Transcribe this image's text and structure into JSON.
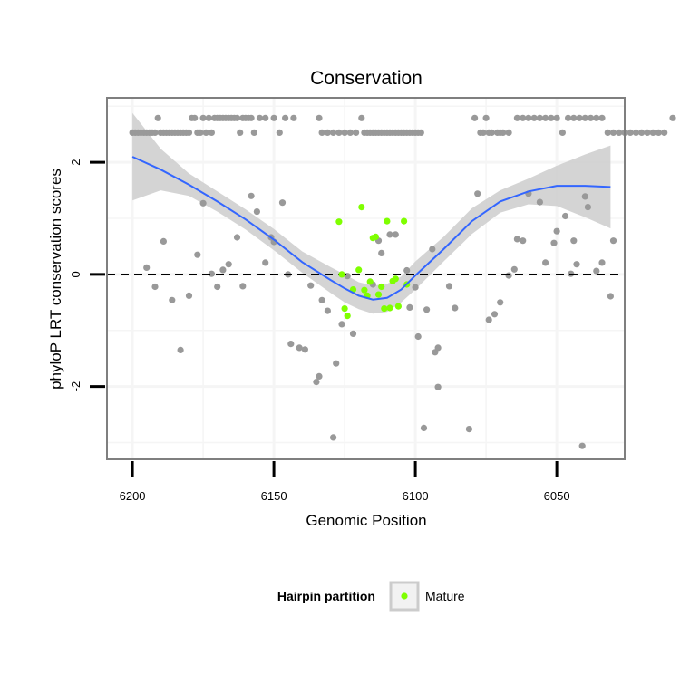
{
  "chart_data": {
    "type": "scatter",
    "title": "Conservation",
    "xlabel": "Genomic Position",
    "ylabel": "phyloP LRT conservation scores",
    "x_reversed": true,
    "xlim": [
      6209,
      6026
    ],
    "ylim": [
      -3.3,
      3.15
    ],
    "x_ticks": [
      6200,
      6150,
      6100,
      6050
    ],
    "y_ticks": [
      -2,
      0,
      2
    ],
    "y_tick_labels": [
      "-2",
      "0",
      "2"
    ],
    "hline": 0,
    "grid": true,
    "legend": {
      "title": "Hairpin partition",
      "entries": [
        {
          "label": "Mature",
          "color": "#7FFF00"
        }
      ],
      "placement": "bottom"
    },
    "colors": {
      "other": "#999999",
      "mature": "#7FFF00",
      "smooth": "#3366FF",
      "ribbon": "#CCCCCC",
      "panel_border": "#7F7F7F",
      "grid": "#F5F5F5"
    },
    "series": [
      {
        "name": "Other",
        "points": [
          [
            6200,
            2.53
          ],
          [
            6199,
            2.53
          ],
          [
            6198,
            2.53
          ],
          [
            6197,
            2.53
          ],
          [
            6196,
            2.53
          ],
          [
            6195,
            2.53
          ],
          [
            6194,
            2.53
          ],
          [
            6193,
            2.53
          ],
          [
            6192,
            2.53
          ],
          [
            6191,
            2.79
          ],
          [
            6190,
            2.53
          ],
          [
            6189,
            2.53
          ],
          [
            6188,
            2.53
          ],
          [
            6187,
            2.53
          ],
          [
            6186,
            2.53
          ],
          [
            6185,
            2.53
          ],
          [
            6184,
            2.53
          ],
          [
            6183,
            2.53
          ],
          [
            6182,
            2.53
          ],
          [
            6181,
            2.53
          ],
          [
            6180,
            2.53
          ],
          [
            6179,
            2.79
          ],
          [
            6178,
            2.79
          ],
          [
            6177,
            2.53
          ],
          [
            6176,
            2.53
          ],
          [
            6175,
            2.79
          ],
          [
            6174,
            2.53
          ],
          [
            6173,
            2.79
          ],
          [
            6172,
            2.53
          ],
          [
            6171,
            2.79
          ],
          [
            6170,
            2.79
          ],
          [
            6169,
            2.79
          ],
          [
            6168,
            2.79
          ],
          [
            6167,
            2.79
          ],
          [
            6166,
            2.79
          ],
          [
            6165,
            2.79
          ],
          [
            6164,
            2.79
          ],
          [
            6163,
            2.79
          ],
          [
            6162,
            2.53
          ],
          [
            6161,
            2.79
          ],
          [
            6160,
            2.79
          ],
          [
            6159,
            2.79
          ],
          [
            6158,
            2.79
          ],
          [
            6157,
            2.53
          ],
          [
            6155,
            2.79
          ],
          [
            6153,
            2.79
          ],
          [
            6150,
            2.79
          ],
          [
            6148,
            2.53
          ],
          [
            6146,
            2.79
          ],
          [
            6143,
            2.79
          ],
          [
            6134,
            2.79
          ],
          [
            6133,
            2.53
          ],
          [
            6131,
            2.53
          ],
          [
            6129,
            2.53
          ],
          [
            6127,
            2.53
          ],
          [
            6125,
            2.53
          ],
          [
            6123,
            2.53
          ],
          [
            6121,
            2.53
          ],
          [
            6119,
            2.79
          ],
          [
            6118,
            2.53
          ],
          [
            6117,
            2.53
          ],
          [
            6116,
            2.53
          ],
          [
            6115,
            2.53
          ],
          [
            6114,
            2.53
          ],
          [
            6113,
            2.53
          ],
          [
            6112,
            2.53
          ],
          [
            6111,
            2.53
          ],
          [
            6110,
            2.53
          ],
          [
            6109,
            2.53
          ],
          [
            6108,
            2.53
          ],
          [
            6107,
            2.53
          ],
          [
            6106,
            2.53
          ],
          [
            6105,
            2.53
          ],
          [
            6104,
            2.53
          ],
          [
            6103,
            2.53
          ],
          [
            6102,
            2.53
          ],
          [
            6101,
            2.53
          ],
          [
            6100,
            2.53
          ],
          [
            6099,
            2.53
          ],
          [
            6098,
            2.53
          ],
          [
            6079,
            2.79
          ],
          [
            6077,
            2.53
          ],
          [
            6076,
            2.53
          ],
          [
            6075,
            2.79
          ],
          [
            6074,
            2.53
          ],
          [
            6073,
            2.53
          ],
          [
            6071,
            2.53
          ],
          [
            6070,
            2.53
          ],
          [
            6069,
            2.53
          ],
          [
            6067,
            2.53
          ],
          [
            6064,
            2.79
          ],
          [
            6062,
            2.79
          ],
          [
            6060,
            2.79
          ],
          [
            6058,
            2.79
          ],
          [
            6056,
            2.79
          ],
          [
            6054,
            2.79
          ],
          [
            6052,
            2.79
          ],
          [
            6050,
            2.79
          ],
          [
            6048,
            2.53
          ],
          [
            6046,
            2.79
          ],
          [
            6044,
            2.79
          ],
          [
            6042,
            2.79
          ],
          [
            6040,
            2.79
          ],
          [
            6038,
            2.79
          ],
          [
            6036,
            2.79
          ],
          [
            6034,
            2.79
          ],
          [
            6032,
            2.53
          ],
          [
            6030,
            2.53
          ],
          [
            6028,
            2.53
          ],
          [
            6026,
            2.53
          ],
          [
            6024,
            2.53
          ],
          [
            6022,
            2.53
          ],
          [
            6020,
            2.53
          ],
          [
            6018,
            2.53
          ],
          [
            6016,
            2.53
          ],
          [
            6014,
            2.53
          ],
          [
            6012,
            2.53
          ],
          [
            6009,
            2.79
          ],
          [
            6195,
            0.12
          ],
          [
            6192,
            -0.22
          ],
          [
            6189,
            0.59
          ],
          [
            6186,
            -0.46
          ],
          [
            6183,
            -1.35
          ],
          [
            6180,
            -0.38
          ],
          [
            6177,
            0.35
          ],
          [
            6175,
            1.27
          ],
          [
            6172,
            0.01
          ],
          [
            6170,
            -0.22
          ],
          [
            6168,
            0.08
          ],
          [
            6166,
            0.18
          ],
          [
            6163,
            0.66
          ],
          [
            6161,
            -0.21
          ],
          [
            6158,
            1.4
          ],
          [
            6156,
            1.12
          ],
          [
            6153,
            0.21
          ],
          [
            6151,
            0.66
          ],
          [
            6150,
            0.58
          ],
          [
            6147,
            1.28
          ],
          [
            6145,
            0.0
          ],
          [
            6144,
            -1.24
          ],
          [
            6141,
            -1.31
          ],
          [
            6139,
            -1.34
          ],
          [
            6137,
            -0.2
          ],
          [
            6135,
            -1.92
          ],
          [
            6134,
            -1.82
          ],
          [
            6133,
            -0.46
          ],
          [
            6131,
            -0.65
          ],
          [
            6129,
            -2.91
          ],
          [
            6128,
            -1.59
          ],
          [
            6126,
            -0.89
          ],
          [
            6124,
            -0.03
          ],
          [
            6122,
            -1.06
          ],
          [
            6115,
            -0.18
          ],
          [
            6113,
            0.6
          ],
          [
            6112,
            0.38
          ],
          [
            6109,
            0.71
          ],
          [
            6107,
            0.71
          ],
          [
            6103,
            0.07
          ],
          [
            6102,
            -0.59
          ],
          [
            6100,
            -0.23
          ],
          [
            6099,
            -1.11
          ],
          [
            6097,
            -2.74
          ],
          [
            6096,
            -0.63
          ],
          [
            6094,
            0.45
          ],
          [
            6093,
            -1.39
          ],
          [
            6092,
            -1.31
          ],
          [
            6092,
            -2.01
          ],
          [
            6088,
            -0.21
          ],
          [
            6086,
            -0.6
          ],
          [
            6081,
            -2.76
          ],
          [
            6078,
            1.44
          ],
          [
            6074,
            -0.81
          ],
          [
            6072,
            -0.71
          ],
          [
            6070,
            -0.5
          ],
          [
            6067,
            -0.02
          ],
          [
            6065,
            0.09
          ],
          [
            6064,
            0.63
          ],
          [
            6062,
            0.6
          ],
          [
            6060,
            1.44
          ],
          [
            6056,
            1.29
          ],
          [
            6054,
            0.21
          ],
          [
            6051,
            0.56
          ],
          [
            6050,
            0.77
          ],
          [
            6047,
            1.04
          ],
          [
            6045,
            0.01
          ],
          [
            6044,
            0.6
          ],
          [
            6043,
            0.18
          ],
          [
            6041,
            -3.06
          ],
          [
            6040,
            1.39
          ],
          [
            6039,
            1.2
          ],
          [
            6036,
            0.06
          ],
          [
            6034,
            0.21
          ],
          [
            6031,
            -0.39
          ],
          [
            6030,
            0.6
          ]
        ]
      },
      {
        "name": "Mature",
        "points": [
          [
            6127,
            0.94
          ],
          [
            6126,
            0.0
          ],
          [
            6125,
            -0.61
          ],
          [
            6124,
            -0.74
          ],
          [
            6122,
            -0.27
          ],
          [
            6120,
            0.08
          ],
          [
            6119,
            1.2
          ],
          [
            6118,
            -0.28
          ],
          [
            6117,
            -0.38
          ],
          [
            6116,
            -0.13
          ],
          [
            6115,
            0.65
          ],
          [
            6114,
            0.67
          ],
          [
            6113,
            -0.36
          ],
          [
            6112,
            -0.22
          ],
          [
            6111,
            -0.61
          ],
          [
            6110,
            0.95
          ],
          [
            6109,
            -0.6
          ],
          [
            6108,
            -0.12
          ],
          [
            6107,
            -0.08
          ],
          [
            6106,
            -0.57
          ],
          [
            6104,
            0.95
          ],
          [
            6103,
            -0.18
          ]
        ]
      }
    ],
    "smooth": {
      "x": [
        6200,
        6190,
        6180,
        6170,
        6160,
        6150,
        6140,
        6130,
        6125,
        6120,
        6115,
        6110,
        6105,
        6100,
        6090,
        6080,
        6070,
        6060,
        6050,
        6040,
        6031
      ],
      "y": [
        2.1,
        1.87,
        1.6,
        1.3,
        0.98,
        0.62,
        0.22,
        -0.1,
        -0.25,
        -0.38,
        -0.45,
        -0.42,
        -0.27,
        -0.02,
        0.45,
        0.95,
        1.3,
        1.48,
        1.58,
        1.58,
        1.56
      ],
      "lo": [
        1.32,
        1.5,
        1.4,
        1.12,
        0.8,
        0.43,
        0.03,
        -0.33,
        -0.5,
        -0.62,
        -0.7,
        -0.67,
        -0.5,
        -0.27,
        0.23,
        0.72,
        1.1,
        1.25,
        1.22,
        1.02,
        0.82
      ],
      "hi": [
        2.88,
        2.24,
        1.8,
        1.48,
        1.16,
        0.81,
        0.41,
        0.13,
        0.0,
        -0.14,
        -0.2,
        -0.17,
        -0.04,
        0.23,
        0.67,
        1.18,
        1.5,
        1.71,
        1.94,
        2.14,
        2.3
      ]
    }
  }
}
